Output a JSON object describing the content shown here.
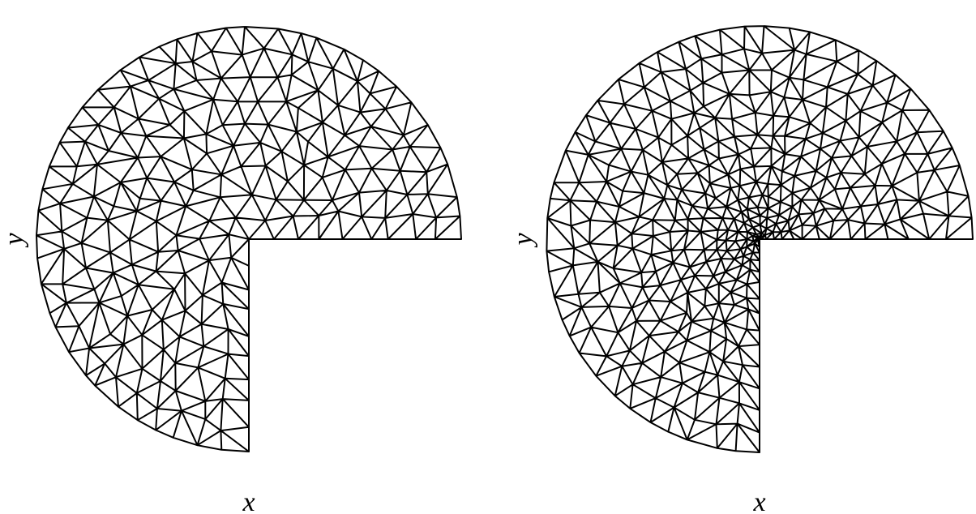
{
  "panels": [
    {
      "x_label": "x",
      "y_label": "y"
    },
    {
      "x_label": "x",
      "y_label": "y"
    }
  ]
}
